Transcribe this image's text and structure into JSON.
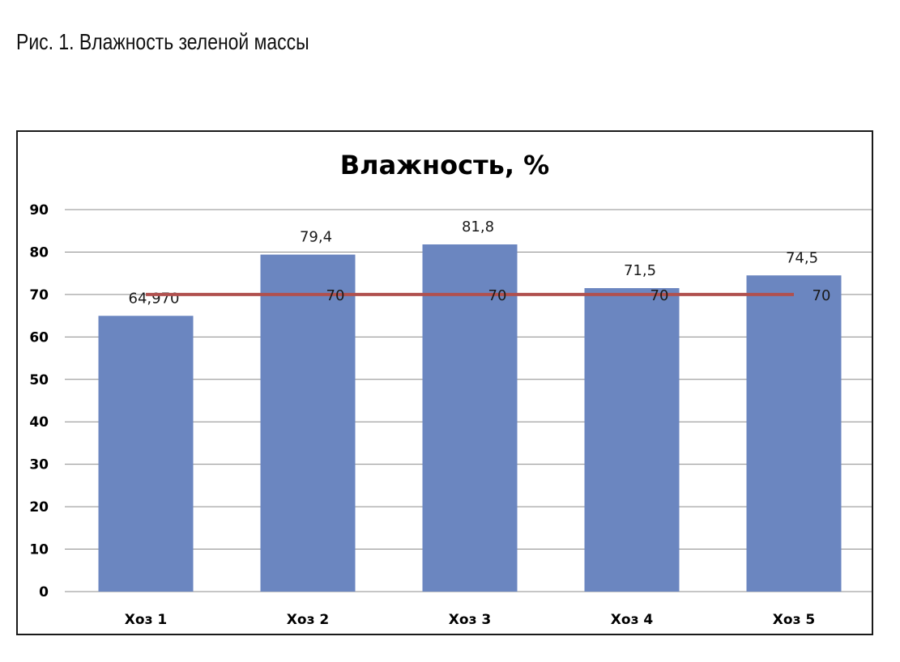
{
  "caption": "Рис. 1. Влажность зеленой массы",
  "chart_data": {
    "type": "bar",
    "title": "Влажность, %",
    "xlabel": "",
    "ylabel": "",
    "categories": [
      "Хоз 1",
      "Хоз 2",
      "Хоз 3",
      "Хоз 4",
      "Хоз 5"
    ],
    "series": [
      {
        "type": "bar",
        "values": [
          64.97,
          79.4,
          81.8,
          71.5,
          74.5
        ],
        "labels": [
          "64,970",
          "79,4",
          "81,8",
          "71,5",
          "74,5"
        ],
        "color": "#6b86c0"
      },
      {
        "type": "line",
        "values": [
          70,
          70,
          70,
          70,
          70
        ],
        "labels": [
          "",
          "70",
          "70",
          "70",
          "70"
        ],
        "color": "#b0504e"
      }
    ],
    "ylim": [
      0,
      90
    ],
    "yticks": [
      "0",
      "10",
      "20",
      "30",
      "40",
      "50",
      "60",
      "70",
      "80",
      "90"
    ],
    "grid": true,
    "legend": "none"
  }
}
